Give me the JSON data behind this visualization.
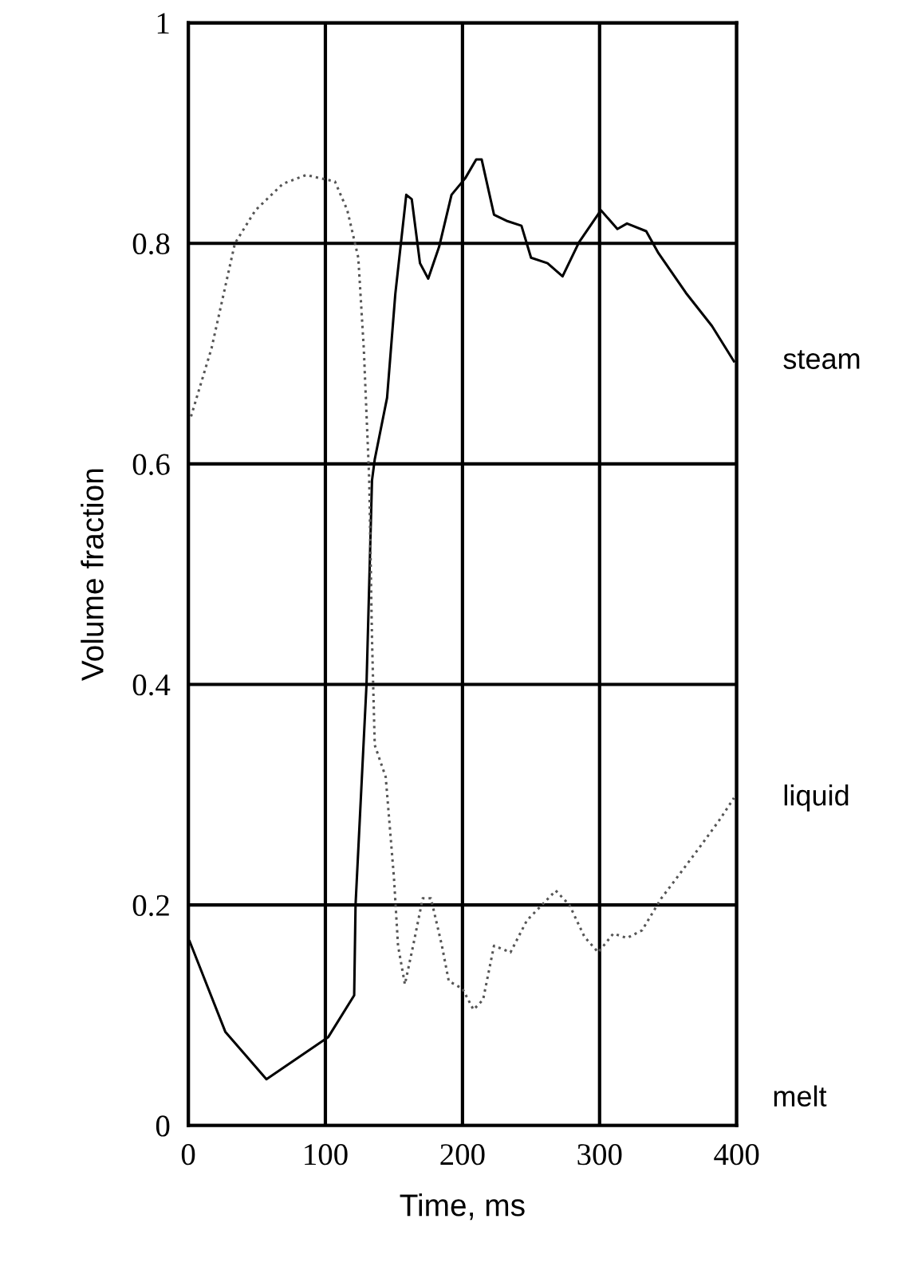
{
  "chart_data": {
    "type": "line",
    "xlabel": "Time, ms",
    "ylabel": "Volume fraction",
    "xlim": [
      0,
      400
    ],
    "xticks": [
      0,
      100,
      200,
      300,
      400
    ],
    "ylim": [
      0,
      1
    ],
    "yticks": [
      0,
      0.2,
      0.4,
      0.6,
      0.8,
      1
    ],
    "grid": true,
    "legend": false,
    "series": [
      {
        "name": "steam",
        "color": "#000000",
        "line_style": "solid",
        "x": [
          1,
          27,
          57,
          102,
          121,
          122,
          130,
          134,
          136,
          145,
          151,
          159,
          163,
          169,
          175,
          183,
          192,
          202,
          210,
          214,
          223,
          233,
          243,
          250,
          262,
          273,
          285,
          301,
          313,
          320,
          334,
          343,
          363,
          382,
          398
        ],
        "values": [
          0.167,
          0.085,
          0.042,
          0.08,
          0.118,
          0.2,
          0.4,
          0.585,
          0.604,
          0.66,
          0.754,
          0.844,
          0.84,
          0.782,
          0.768,
          0.797,
          0.844,
          0.859,
          0.876,
          0.876,
          0.826,
          0.82,
          0.816,
          0.787,
          0.782,
          0.77,
          0.801,
          0.83,
          0.813,
          0.818,
          0.811,
          0.791,
          0.755,
          0.725,
          0.693
        ]
      },
      {
        "name": "liquid",
        "color": "#555555",
        "line_style": "dotted",
        "x": [
          2,
          17,
          34,
          49,
          69,
          86,
          107,
          116,
          124,
          128,
          132,
          134,
          136,
          144,
          150,
          153,
          158,
          164,
          171,
          177,
          185,
          190,
          200,
          208,
          215,
          223,
          235,
          247,
          258,
          268,
          278,
          289,
          299,
          310,
          320,
          331,
          345,
          359,
          374,
          388,
          398
        ],
        "values": [
          0.643,
          0.705,
          0.8,
          0.83,
          0.854,
          0.862,
          0.856,
          0.83,
          0.787,
          0.705,
          0.585,
          0.441,
          0.345,
          0.316,
          0.225,
          0.163,
          0.128,
          0.163,
          0.206,
          0.206,
          0.163,
          0.131,
          0.124,
          0.105,
          0.114,
          0.163,
          0.157,
          0.186,
          0.2,
          0.213,
          0.2,
          0.171,
          0.157,
          0.174,
          0.17,
          0.177,
          0.206,
          0.229,
          0.254,
          0.278,
          0.297
        ]
      }
    ],
    "annotations": [
      "melt"
    ]
  }
}
